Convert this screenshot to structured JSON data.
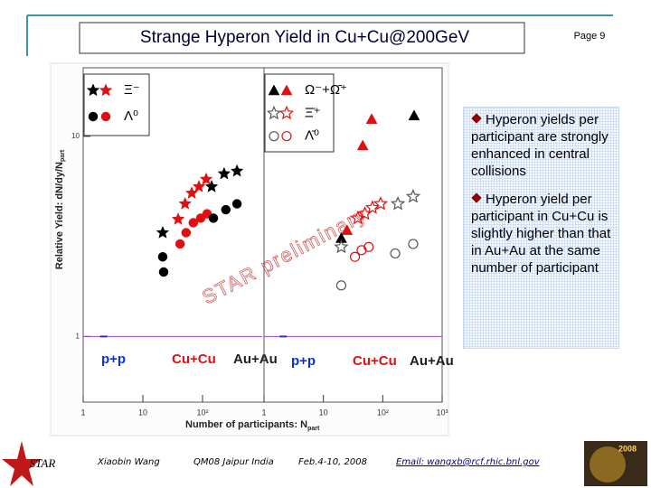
{
  "header": {
    "title": "Strange Hyperon Yield in Cu+Cu@200GeV",
    "page": "Page 9"
  },
  "bullets": [
    "Hyperon yields per participant are strongly enhanced in central collisions",
    "Hyperon yield per participant in Cu+Cu is slightly higher than that in Au+Au at the same number of participant"
  ],
  "footer": {
    "logo": "STAR",
    "author": "Xiaobin Wang",
    "conference": "QM08 Jaipur India",
    "date": "Feb.4-10, 2008",
    "email": "Email: wangxb@rcf.rhic.bnl.gov",
    "badge": "2008"
  },
  "chart_data": [
    {
      "type": "scatter",
      "log_x": true,
      "log_y": true,
      "ylabel": "Relative Yield: dN/dy/N",
      "ylabel_sub": "part",
      "xlabel": "Number of participants: N",
      "xlabel_sub": "part",
      "xlim": [
        1,
        1000
      ],
      "ylim": [
        0.47,
        22
      ],
      "xticks": [
        {
          "value": 1,
          "label": "1"
        },
        {
          "value": 10,
          "label": "10"
        },
        {
          "value": 100,
          "label": "10²"
        }
      ],
      "yticks": [
        1,
        10
      ],
      "hline": 1,
      "hline_color": "#a040c0",
      "annotations": [
        {
          "text": "p+p",
          "color": "#1030d0"
        },
        {
          "text": "Cu+Cu",
          "color": "#e01010"
        },
        {
          "text": "Au+Au",
          "color": "#202020"
        }
      ],
      "watermark": "STAR preliminary",
      "pp": {
        "x": [
          2.2
        ],
        "values": [
          1
        ],
        "color": "#3030c0"
      },
      "series": [
        {
          "name": "Ξ⁻",
          "marker": "star",
          "filled": true,
          "systems": [
            {
              "color": "#e01010",
              "x": [
                39,
                51,
                66,
                87,
                115
              ],
              "values": [
                3.85,
                4.6,
                5.2,
                5.6,
                6.1
              ]
            },
            {
              "color": "#000000",
              "x": [
                21.5,
                142,
                230,
                378
              ],
              "values": [
                3.3,
                5.6,
                6.5,
                6.7
              ]
            }
          ]
        },
        {
          "name": "Λ⁰",
          "marker": "circle",
          "filled": true,
          "systems": [
            {
              "color": "#e01010",
              "x": [
                42,
                53,
                70,
                93,
                119
              ],
              "values": [
                2.9,
                3.3,
                3.7,
                3.9,
                4.1
              ]
            },
            {
              "color": "#000000",
              "x": [
                22.3,
                21.5,
                152,
                246,
                378
              ],
              "values": [
                2.1,
                2.5,
                3.9,
                4.3,
                4.6
              ]
            }
          ]
        }
      ]
    },
    {
      "type": "scatter",
      "log_x": true,
      "log_y": true,
      "xlim": [
        1,
        1000
      ],
      "ylim": [
        0.47,
        22
      ],
      "xticks": [
        {
          "value": 1,
          "label": "1"
        },
        {
          "value": 10,
          "label": "10"
        },
        {
          "value": 100,
          "label": "10²"
        },
        {
          "value": 1000,
          "label": "10³"
        }
      ],
      "hline": 1,
      "hline_color": "#a040c0",
      "annotations": [
        {
          "text": "p+p",
          "color": "#1030d0"
        },
        {
          "text": "Cu+Cu",
          "color": "#e01010"
        },
        {
          "text": "Au+Au",
          "color": "#202020"
        }
      ],
      "pp": {
        "x": [
          2.1
        ],
        "values": [
          1
        ],
        "color": "#3030c0"
      },
      "series": [
        {
          "name": "Ω⁻+Ω̄⁺",
          "marker": "triangle",
          "filled": true,
          "systems": [
            {
              "color": "#e01010",
              "x": [
                25,
                46,
                65
              ],
              "values": [
                3.4,
                9.0,
                12.2
              ]
            },
            {
              "color": "#000000",
              "x": [
                20,
                337
              ],
              "values": [
                3.1,
                12.7
              ]
            }
          ]
        },
        {
          "name": "Ξ̄⁺",
          "marker": "star",
          "filled": false,
          "systems": [
            {
              "color": "#e01010",
              "x": [
                38,
                50,
                67,
                92
              ],
              "values": [
                3.9,
                4.1,
                4.4,
                4.6
              ]
            },
            {
              "color": "#555555",
              "x": [
                20,
                180,
                325
              ],
              "values": [
                2.8,
                4.6,
                5.0
              ]
            }
          ]
        },
        {
          "name": "Λ̄⁰",
          "marker": "circle",
          "filled": false,
          "systems": [
            {
              "color": "#e01010",
              "x": [
                34,
                44,
                58
              ],
              "values": [
                2.5,
                2.7,
                2.8
              ]
            },
            {
              "color": "#555555",
              "x": [
                20,
                162,
                325
              ],
              "values": [
                1.8,
                2.6,
                2.9
              ]
            }
          ]
        }
      ]
    }
  ]
}
